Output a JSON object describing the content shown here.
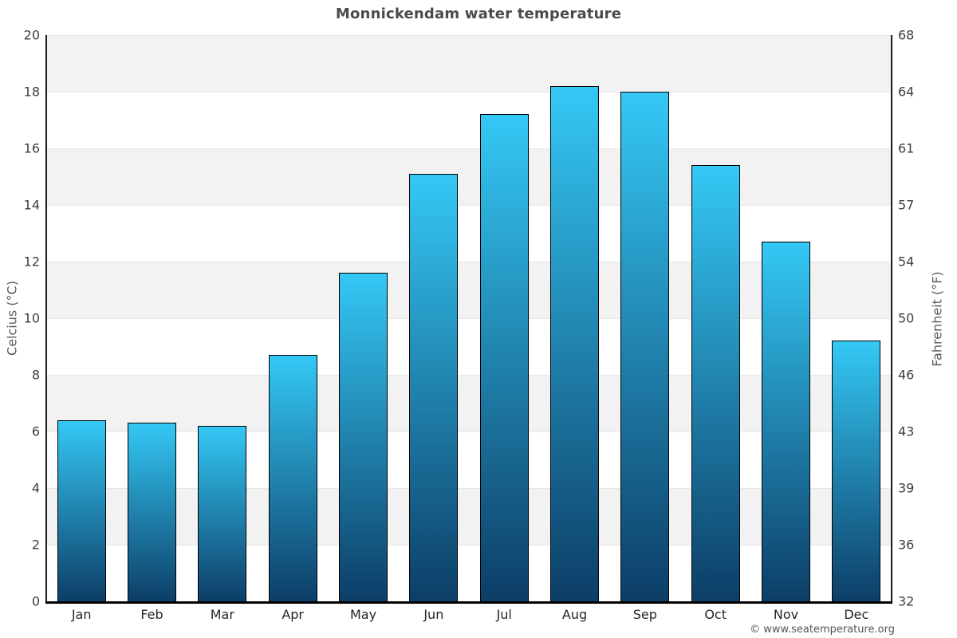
{
  "title": "Monnickendam water temperature",
  "footer": "© www.seatemperature.org",
  "axes": {
    "left_label": "Celcius (°C)",
    "right_label": "Fahrenheit (°F)",
    "left_ticks": [
      "0",
      "2",
      "4",
      "6",
      "8",
      "10",
      "12",
      "14",
      "16",
      "18",
      "20"
    ],
    "right_ticks": [
      "32",
      "36",
      "39",
      "43",
      "46",
      "50",
      "54",
      "57",
      "61",
      "64",
      "68"
    ]
  },
  "chart_data": {
    "type": "bar",
    "title": "Monnickendam water temperature",
    "categories": [
      "Jan",
      "Feb",
      "Mar",
      "Apr",
      "May",
      "Jun",
      "Jul",
      "Aug",
      "Sep",
      "Oct",
      "Nov",
      "Dec"
    ],
    "values": [
      6.4,
      6.3,
      6.2,
      8.7,
      11.6,
      15.1,
      17.2,
      18.2,
      18.0,
      15.4,
      12.7,
      9.2
    ],
    "xlabel": "",
    "ylabel": "Celcius (°C)",
    "ylabel_right": "Fahrenheit (°F)",
    "ylim": [
      0,
      20
    ],
    "grid": "horizontal-bands",
    "legend": "none",
    "colors": {
      "bar_gradient_top": "#35c8f5",
      "bar_gradient_bottom": "#0c3e67",
      "bar_border": "#000000",
      "band_gray": "#f2f2f2",
      "band_white": "#ffffff",
      "gridline": "#e7e7e7",
      "title_text": "#4a4a4a",
      "tick_text": "#3d3d3d",
      "axis_title_text": "#5a5a5a"
    }
  }
}
